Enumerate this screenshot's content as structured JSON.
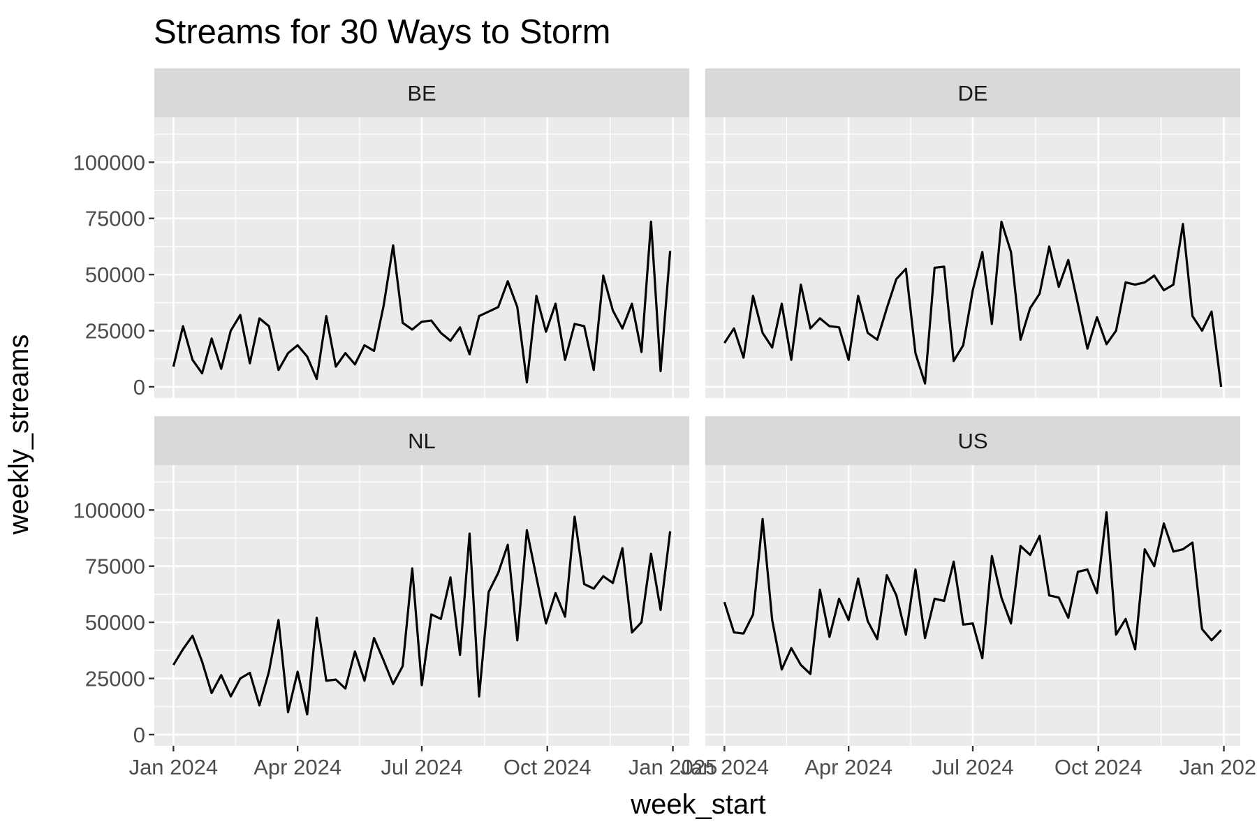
{
  "chart_data": {
    "type": "line",
    "title": "Streams for 30 Ways to Storm",
    "xlabel": "week_start",
    "ylabel": "weekly_streams",
    "x_start": "2024-01-01",
    "x_step_days": 7,
    "xlim": [
      "2023-12-18",
      "2025-01-13"
    ],
    "ylim": [
      -5000,
      120000
    ],
    "x_ticks": [
      {
        "date": "2024-01-01",
        "label": "Jan 2024"
      },
      {
        "date": "2024-04-01",
        "label": "Apr 2024"
      },
      {
        "date": "2024-07-01",
        "label": "Jul 2024"
      },
      {
        "date": "2024-10-01",
        "label": "Oct 2024"
      },
      {
        "date": "2025-01-01",
        "label": "Jan 2025"
      }
    ],
    "y_ticks": [
      0,
      25000,
      50000,
      75000,
      100000
    ],
    "y_tick_labels": [
      "0",
      "25000",
      "50000",
      "75000",
      "100000"
    ],
    "grid": true,
    "panels": [
      {
        "name": "BE",
        "values": [
          9000,
          27000,
          12000,
          6000,
          21500,
          8000,
          25000,
          32000,
          10500,
          30500,
          27000,
          7500,
          15000,
          18500,
          13500,
          3500,
          31500,
          9000,
          15000,
          10000,
          18500,
          16000,
          36000,
          63000,
          28500,
          25500,
          29000,
          29500,
          24000,
          20500,
          26500,
          14500,
          31500,
          33500,
          35500,
          47000,
          35500,
          2000,
          40500,
          24500,
          37000,
          12000,
          28000,
          27000,
          7500,
          49500,
          34000,
          26000,
          37000,
          15500,
          73500,
          7000,
          60500
        ]
      },
      {
        "name": "DE",
        "values": [
          19500,
          26000,
          13000,
          40500,
          24000,
          17500,
          37000,
          12000,
          45500,
          26000,
          30500,
          27000,
          26500,
          12000,
          40500,
          24000,
          21000,
          35000,
          48000,
          52500,
          15000,
          1500,
          53000,
          53500,
          11500,
          18500,
          43000,
          60000,
          28000,
          73500,
          60000,
          21000,
          35000,
          41500,
          62500,
          44500,
          56500,
          37000,
          17000,
          31000,
          19000,
          25000,
          46500,
          45500,
          46500,
          49500,
          43000,
          45500,
          72500,
          31500,
          25000,
          33500,
          0
        ]
      },
      {
        "name": "NL",
        "values": [
          31000,
          38000,
          44000,
          32500,
          18500,
          26500,
          17000,
          25000,
          27500,
          13000,
          28000,
          51000,
          10000,
          28000,
          9000,
          52000,
          24000,
          24500,
          20500,
          37000,
          24000,
          43000,
          33000,
          22500,
          30500,
          74000,
          22000,
          53500,
          51500,
          70000,
          35500,
          89500,
          17000,
          63500,
          72000,
          84500,
          42000,
          91000,
          70000,
          49500,
          63000,
          52500,
          97000,
          67000,
          65000,
          70500,
          67500,
          83000,
          45500,
          50000,
          80500,
          55500,
          90500
        ]
      },
      {
        "name": "US",
        "values": [
          59000,
          45500,
          45000,
          53500,
          96000,
          51000,
          29000,
          38500,
          31000,
          27000,
          64500,
          43500,
          60500,
          51000,
          69500,
          50500,
          42500,
          71000,
          62000,
          44500,
          73500,
          43000,
          60500,
          59500,
          77000,
          49000,
          49500,
          34000,
          79500,
          61000,
          49500,
          84000,
          80000,
          88500,
          62000,
          61000,
          52000,
          72500,
          73500,
          63000,
          99000,
          44500,
          51500,
          38000,
          82500,
          75000,
          94000,
          81500,
          82500,
          85500,
          47000,
          42000,
          46500
        ]
      }
    ]
  }
}
